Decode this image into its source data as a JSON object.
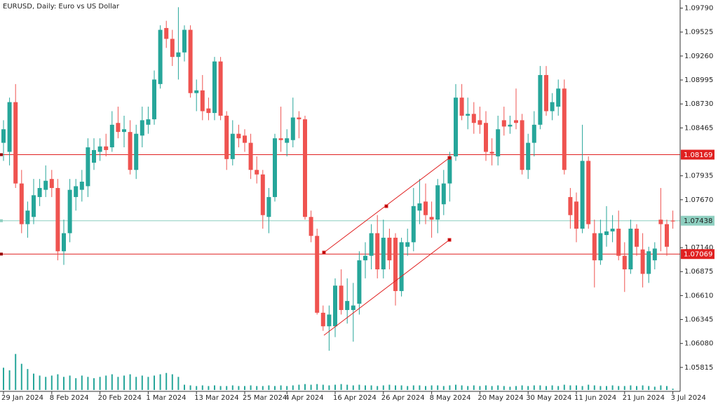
{
  "chart_data": {
    "type": "candlestick",
    "title": "EURUSD, Daily:  Euro vs US Dollar",
    "up_color": "#26a69a",
    "down_color": "#ef5350",
    "volume_color": "#26a69a",
    "ylim": [
      1.0555,
      1.0988
    ],
    "yticks": [
      {
        "value": 1.0979,
        "label": "1.09790"
      },
      {
        "value": 1.09525,
        "label": "1.09525"
      },
      {
        "value": 1.0926,
        "label": "1.09260"
      },
      {
        "value": 1.08995,
        "label": "1.08995"
      },
      {
        "value": 1.0873,
        "label": "1.08730"
      },
      {
        "value": 1.08465,
        "label": "1.08465"
      },
      {
        "value": 1.07935,
        "label": "1.07935"
      },
      {
        "value": 1.0767,
        "label": "1.07670"
      },
      {
        "value": 1.0714,
        "label": "1.07140"
      },
      {
        "value": 1.06875,
        "label": "1.06875"
      },
      {
        "value": 1.0661,
        "label": "1.06610"
      },
      {
        "value": 1.06345,
        "label": "1.06345"
      },
      {
        "value": 1.0608,
        "label": "1.06080"
      },
      {
        "value": 1.05815,
        "label": "1.05815"
      }
    ],
    "hlines": [
      {
        "value": 1.08169,
        "color": "#e02020"
      },
      {
        "value": 1.07069,
        "color": "#e02020"
      },
      {
        "value": 1.07438,
        "color": "#8ecfc0"
      }
    ],
    "volume_lim": [
      0,
      60
    ],
    "categories": [
      "29 Jan 2024",
      null,
      null,
      null,
      null,
      null,
      null,
      null,
      "8 Feb 2024",
      null,
      null,
      null,
      null,
      null,
      null,
      null,
      "20 Feb 2024",
      null,
      null,
      null,
      null,
      null,
      null,
      null,
      "1 Mar 2024",
      null,
      null,
      null,
      null,
      null,
      null,
      null,
      "13 Mar 2024",
      null,
      null,
      null,
      null,
      null,
      null,
      null,
      "25 Mar 2024",
      null,
      null,
      null,
      null,
      null,
      null,
      "4 Apr 2024",
      null,
      null,
      null,
      null,
      null,
      null,
      null,
      "16 Apr 2024",
      null,
      null,
      null,
      null,
      null,
      null,
      null,
      "26 Apr 2024",
      null,
      null,
      null,
      null,
      null,
      null,
      null,
      "8 May 2024",
      null,
      null,
      null,
      null,
      null,
      null,
      null,
      "20 May 2024",
      null,
      null,
      null,
      null,
      null,
      null,
      null,
      "30 May 2024",
      null,
      null,
      null,
      null,
      null,
      null,
      null,
      "11 Jun 2024",
      null,
      null,
      null,
      null,
      null,
      null,
      null,
      "21 Jun 2024",
      null,
      null,
      null,
      null,
      null,
      null,
      null,
      "3 Jul 2024"
    ],
    "ohlc": [
      [
        1.083,
        1.0855,
        1.081,
        1.0845
      ],
      [
        1.082,
        1.088,
        1.0805,
        1.0875
      ],
      [
        1.0875,
        1.0895,
        1.078,
        1.0785
      ],
      [
        1.0785,
        1.08,
        1.073,
        1.074
      ],
      [
        1.074,
        1.0765,
        1.0725,
        1.0755
      ],
      [
        1.0748,
        1.079,
        1.074,
        1.0772
      ],
      [
        1.077,
        1.079,
        1.076,
        1.078
      ],
      [
        1.0778,
        1.0805,
        1.077,
        1.0788
      ],
      [
        1.079,
        1.08,
        1.077,
        1.078
      ],
      [
        1.078,
        1.079,
        1.07,
        1.071
      ],
      [
        1.071,
        1.0745,
        1.0695,
        1.073
      ],
      [
        1.073,
        1.079,
        1.072,
        1.0778
      ],
      [
        1.077,
        1.079,
        1.0755,
        1.0782
      ],
      [
        1.0778,
        1.08,
        1.0765,
        1.0787
      ],
      [
        1.0782,
        1.0835,
        1.077,
        1.0825
      ],
      [
        1.0808,
        1.0835,
        1.08,
        1.0822
      ],
      [
        1.082,
        1.0835,
        1.081,
        1.0826
      ],
      [
        1.0826,
        1.084,
        1.0815,
        1.0822
      ],
      [
        1.0825,
        1.0865,
        1.082,
        1.085
      ],
      [
        1.0852,
        1.087,
        1.0835,
        1.0842
      ],
      [
        1.0842,
        1.086,
        1.0825,
        1.0845
      ],
      [
        1.0842,
        1.0855,
        1.0795,
        1.08
      ],
      [
        1.08,
        1.085,
        1.079,
        1.084
      ],
      [
        1.0838,
        1.087,
        1.0825,
        1.0855
      ],
      [
        1.085,
        1.087,
        1.084,
        1.0856
      ],
      [
        1.0856,
        1.091,
        1.085,
        1.09
      ],
      [
        1.0895,
        1.096,
        1.089,
        1.0955
      ],
      [
        1.0957,
        1.0965,
        1.0935,
        1.0945
      ],
      [
        1.0945,
        1.0955,
        1.0915,
        1.0925
      ],
      [
        1.0925,
        1.098,
        1.09,
        1.093
      ],
      [
        1.093,
        1.096,
        1.092,
        1.0955
      ],
      [
        1.0955,
        1.096,
        1.088,
        1.0885
      ],
      [
        1.0885,
        1.09,
        1.0865,
        1.0888
      ],
      [
        1.0888,
        1.0905,
        1.0855,
        1.0865
      ],
      [
        1.0868,
        1.088,
        1.0855,
        1.0863
      ],
      [
        1.0863,
        1.0925,
        1.0855,
        1.092
      ],
      [
        1.092,
        1.0925,
        1.0855,
        1.086
      ],
      [
        1.086,
        1.0865,
        1.08,
        1.0812
      ],
      [
        1.0812,
        1.0855,
        1.0805,
        1.084
      ],
      [
        1.084,
        1.085,
        1.0825,
        1.0835
      ],
      [
        1.0838,
        1.0845,
        1.082,
        1.083
      ],
      [
        1.083,
        1.084,
        1.079,
        1.08
      ],
      [
        1.08,
        1.0815,
        1.0785,
        1.0795
      ],
      [
        1.0795,
        1.08,
        1.0735,
        1.075
      ],
      [
        1.0748,
        1.078,
        1.073,
        1.077
      ],
      [
        1.077,
        1.084,
        1.0765,
        1.0835
      ],
      [
        1.0835,
        1.087,
        1.082,
        1.0833
      ],
      [
        1.083,
        1.0845,
        1.0815,
        1.0835
      ],
      [
        1.0833,
        1.088,
        1.0825,
        1.0858
      ],
      [
        1.0858,
        1.0865,
        1.0835,
        1.0856
      ],
      [
        1.0856,
        1.086,
        1.0745,
        1.0748
      ],
      [
        1.0748,
        1.0755,
        1.072,
        1.0727
      ],
      [
        1.0727,
        1.0735,
        1.064,
        1.0642
      ],
      [
        1.0642,
        1.065,
        1.0622,
        1.0627
      ],
      [
        1.0627,
        1.065,
        1.06,
        1.064
      ],
      [
        1.0627,
        1.068,
        1.0615,
        1.0672
      ],
      [
        1.0672,
        1.069,
        1.064,
        1.0645
      ],
      [
        1.0645,
        1.068,
        1.063,
        1.0655
      ],
      [
        1.0645,
        1.0675,
        1.061,
        1.065
      ],
      [
        1.0652,
        1.071,
        1.064,
        1.07
      ],
      [
        1.07,
        1.072,
        1.068,
        1.0705
      ],
      [
        1.0705,
        1.074,
        1.069,
        1.073
      ],
      [
        1.073,
        1.075,
        1.068,
        1.069
      ],
      [
        1.069,
        1.0745,
        1.068,
        1.0725
      ],
      [
        1.0725,
        1.0735,
        1.069,
        1.07
      ],
      [
        1.0725,
        1.073,
        1.065,
        1.0666
      ],
      [
        1.0666,
        1.0725,
        1.066,
        1.072
      ],
      [
        1.0715,
        1.0735,
        1.0705,
        1.072
      ],
      [
        1.072,
        1.078,
        1.071,
        1.076
      ],
      [
        1.0755,
        1.079,
        1.074,
        1.0763
      ],
      [
        1.0765,
        1.0785,
        1.074,
        1.075
      ],
      [
        1.0748,
        1.0765,
        1.0725,
        1.0745
      ],
      [
        1.0745,
        1.079,
        1.073,
        1.0783
      ],
      [
        1.0762,
        1.08,
        1.075,
        1.0785
      ],
      [
        1.0785,
        1.082,
        1.0765,
        1.0815
      ],
      [
        1.0815,
        1.0895,
        1.081,
        1.088
      ],
      [
        1.088,
        1.0895,
        1.0855,
        1.086
      ],
      [
        1.086,
        1.088,
        1.0845,
        1.0862
      ],
      [
        1.0862,
        1.0875,
        1.084,
        1.0852
      ],
      [
        1.0855,
        1.087,
        1.084,
        1.085
      ],
      [
        1.0852,
        1.0865,
        1.081,
        1.082
      ],
      [
        1.082,
        1.0835,
        1.0805,
        1.0818
      ],
      [
        1.0815,
        1.086,
        1.0805,
        1.0845
      ],
      [
        1.0855,
        1.087,
        1.0838,
        1.0848
      ],
      [
        1.0848,
        1.086,
        1.084,
        1.085
      ],
      [
        1.0855,
        1.089,
        1.0845,
        1.0852
      ],
      [
        1.0855,
        1.0862,
        1.0795,
        1.08
      ],
      [
        1.08,
        1.084,
        1.079,
        1.083
      ],
      [
        1.083,
        1.0865,
        1.0815,
        1.085
      ],
      [
        1.085,
        1.0915,
        1.0845,
        1.0905
      ],
      [
        1.0905,
        1.0915,
        1.086,
        1.0865
      ],
      [
        1.0865,
        1.0885,
        1.0855,
        1.0875
      ],
      [
        1.087,
        1.09,
        1.086,
        1.089
      ],
      [
        1.089,
        1.09,
        1.0795,
        1.08
      ],
      [
        1.077,
        1.078,
        1.0735,
        1.075
      ],
      [
        1.0765,
        1.0775,
        1.072,
        1.0735
      ],
      [
        1.0735,
        1.085,
        1.073,
        1.081
      ],
      [
        1.081,
        1.0815,
        1.0735,
        1.074
      ],
      [
        1.073,
        1.0745,
        1.067,
        1.07
      ],
      [
        1.07,
        1.0745,
        1.0695,
        1.073
      ],
      [
        1.0728,
        1.076,
        1.0715,
        1.0732
      ],
      [
        1.0732,
        1.075,
        1.072,
        1.0735
      ],
      [
        1.0735,
        1.0755,
        1.07,
        1.0705
      ],
      [
        1.0705,
        1.072,
        1.0665,
        1.069
      ],
      [
        1.069,
        1.0745,
        1.0685,
        1.0735
      ],
      [
        1.0735,
        1.074,
        1.0705,
        1.0715
      ],
      [
        1.0712,
        1.073,
        1.067,
        1.0685
      ],
      [
        1.0685,
        1.0715,
        1.0675,
        1.071
      ],
      [
        1.07,
        1.072,
        1.069,
        1.0713
      ],
      [
        1.0745,
        1.078,
        1.071,
        1.074
      ],
      [
        1.074,
        1.0745,
        1.0705,
        1.0715
      ],
      [
        1.0744,
        1.0755,
        1.0735,
        1.0743
      ]
    ],
    "volume": [
      34,
      30,
      55,
      40,
      32,
      25,
      22,
      20,
      22,
      24,
      20,
      22,
      18,
      22,
      20,
      18,
      20,
      22,
      24,
      20,
      22,
      24,
      20,
      22,
      20,
      22,
      24,
      26,
      24,
      20,
      8,
      7,
      6,
      7,
      6,
      7,
      6,
      6,
      7,
      6,
      6,
      7,
      6,
      6,
      7,
      6,
      7,
      6,
      7,
      8,
      9,
      8,
      9,
      8,
      7,
      8,
      9,
      8,
      7,
      8,
      7,
      7,
      6,
      7,
      8,
      7,
      7,
      6,
      7,
      7,
      6,
      7,
      7,
      6,
      7,
      8,
      7,
      6,
      7,
      6,
      7,
      6,
      7,
      6,
      5,
      6,
      7,
      6,
      7,
      7,
      6,
      7,
      6,
      8,
      7,
      7,
      6,
      8,
      7,
      6,
      6,
      7,
      6,
      6,
      7,
      6,
      7,
      6,
      5,
      7,
      6,
      2
    ]
  }
}
